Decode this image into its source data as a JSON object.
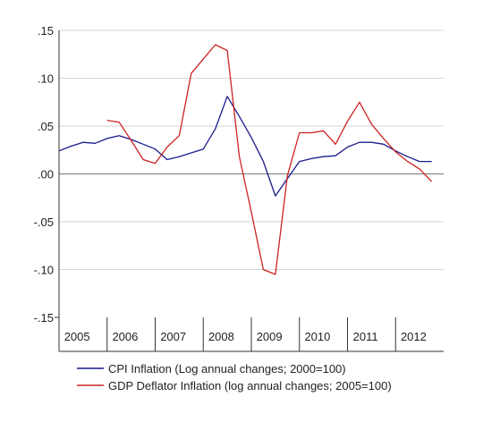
{
  "chart_data": {
    "type": "line",
    "title": "",
    "xlabel": "",
    "ylabel": "",
    "ylim": [
      -0.15,
      0.15
    ],
    "xlim": [
      2004.75,
      2012.75
    ],
    "y_ticks": [
      {
        "value": 0.15,
        "label": ".15"
      },
      {
        "value": 0.1,
        "label": ".10"
      },
      {
        "value": 0.05,
        "label": ".05"
      },
      {
        "value": 0.0,
        "label": ".00"
      },
      {
        "value": -0.05,
        "label": "-.05"
      },
      {
        "value": -0.1,
        "label": "-.10"
      },
      {
        "value": -0.15,
        "label": "-.15"
      }
    ],
    "x_ticks": [
      {
        "value": 2005,
        "label": "2005"
      },
      {
        "value": 2006,
        "label": "2006"
      },
      {
        "value": 2007,
        "label": "2007"
      },
      {
        "value": 2008,
        "label": "2008"
      },
      {
        "value": 2009,
        "label": "2009"
      },
      {
        "value": 2010,
        "label": "2010"
      },
      {
        "value": 2011,
        "label": "2011"
      },
      {
        "value": 2012,
        "label": "2012"
      }
    ],
    "grid": true,
    "zero_line": true,
    "legend_position": "bottom",
    "series": [
      {
        "name": "CPI Inflation (Log annual changes; 2000=100)",
        "color": "#1a1a8c",
        "points": [
          [
            2004.75,
            0.024
          ],
          [
            2005.0,
            0.029
          ],
          [
            2005.25,
            0.033
          ],
          [
            2005.5,
            0.032
          ],
          [
            2005.75,
            0.037
          ],
          [
            2006.0,
            0.04
          ],
          [
            2006.25,
            0.036
          ],
          [
            2006.5,
            0.031
          ],
          [
            2006.75,
            0.026
          ],
          [
            2007.0,
            0.015
          ],
          [
            2007.25,
            0.018
          ],
          [
            2007.5,
            0.022
          ],
          [
            2007.75,
            0.026
          ],
          [
            2008.0,
            0.047
          ],
          [
            2008.25,
            0.081
          ],
          [
            2008.5,
            0.06
          ],
          [
            2008.75,
            0.038
          ],
          [
            2009.0,
            0.013
          ],
          [
            2009.25,
            -0.023
          ],
          [
            2009.5,
            -0.005
          ],
          [
            2009.75,
            0.013
          ],
          [
            2010.0,
            0.016
          ],
          [
            2010.25,
            0.018
          ],
          [
            2010.5,
            0.019
          ],
          [
            2010.75,
            0.028
          ],
          [
            2011.0,
            0.033
          ],
          [
            2011.25,
            0.033
          ],
          [
            2011.5,
            0.031
          ],
          [
            2011.75,
            0.024
          ],
          [
            2012.0,
            0.018
          ],
          [
            2012.25,
            0.013
          ],
          [
            2012.5,
            0.013
          ]
        ]
      },
      {
        "name": "GDP Deflator Inflation (log annual changes; 2005=100)",
        "color": "#cc2222",
        "points": [
          [
            2005.75,
            0.056
          ],
          [
            2006.0,
            0.054
          ],
          [
            2006.25,
            0.035
          ],
          [
            2006.5,
            0.015
          ],
          [
            2006.75,
            0.011
          ],
          [
            2007.0,
            0.028
          ],
          [
            2007.25,
            0.04
          ],
          [
            2007.5,
            0.105
          ],
          [
            2007.75,
            0.12
          ],
          [
            2008.0,
            0.135
          ],
          [
            2008.25,
            0.129
          ],
          [
            2008.5,
            0.018
          ],
          [
            2008.75,
            -0.04
          ],
          [
            2009.0,
            -0.1
          ],
          [
            2009.25,
            -0.105
          ],
          [
            2009.5,
            -0.002
          ],
          [
            2009.75,
            0.043
          ],
          [
            2010.0,
            0.043
          ],
          [
            2010.25,
            0.045
          ],
          [
            2010.5,
            0.031
          ],
          [
            2010.75,
            0.055
          ],
          [
            2011.0,
            0.075
          ],
          [
            2011.25,
            0.052
          ],
          [
            2011.5,
            0.037
          ],
          [
            2011.75,
            0.023
          ],
          [
            2012.0,
            0.013
          ],
          [
            2012.25,
            0.005
          ],
          [
            2012.5,
            -0.008
          ]
        ]
      }
    ]
  }
}
